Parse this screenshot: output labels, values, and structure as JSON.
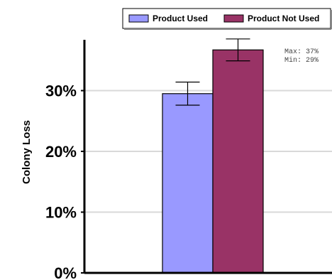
{
  "chart_data": {
    "type": "bar",
    "ylabel": "Colony Loss",
    "ylim": [
      0,
      0.38
    ],
    "yticks": [
      0,
      0.1,
      0.2,
      0.3
    ],
    "ytick_labels": [
      "0%",
      "10%",
      "20%",
      "30%"
    ],
    "grid": true,
    "legend_position": "top-right",
    "series": [
      {
        "name": "Product Used",
        "value": 0.295,
        "error_low": 0.276,
        "error_high": 0.314,
        "color": "#9999ff"
      },
      {
        "name": "Product Not Used",
        "value": 0.367,
        "error_low": 0.349,
        "error_high": 0.385,
        "color": "#993366"
      }
    ],
    "annotation": {
      "max_label": "Max: 37%",
      "min_label": "Min: 29%"
    }
  }
}
